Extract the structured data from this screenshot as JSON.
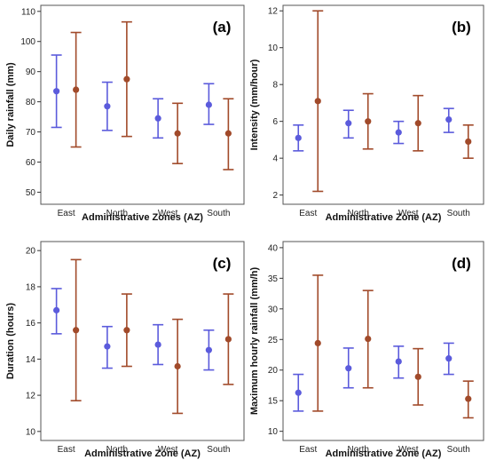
{
  "colors": {
    "series_1": "#5b5bdc",
    "series_2": "#a14a2a",
    "frame": "#555555",
    "background": "#ffffff"
  },
  "chart_data": [
    {
      "type": "errorbar",
      "panel_label": "(a)",
      "xlabel": "Administrative Zones (AZ)",
      "ylabel": "Daily rainfall (mm)",
      "categories": [
        "East",
        "North",
        "West",
        "South"
      ],
      "ylim": [
        46,
        112
      ],
      "yticks": [
        "50",
        "60",
        "70",
        "80",
        "90",
        "100",
        "110"
      ],
      "grid": false,
      "series": [
        {
          "mean": [
            83.5,
            78.5,
            74.5,
            79.0
          ],
          "lower": [
            71.5,
            70.5,
            68.0,
            72.5
          ],
          "upper": [
            95.5,
            86.5,
            81.0,
            86.0
          ]
        },
        {
          "mean": [
            84.0,
            87.5,
            69.5,
            69.5
          ],
          "lower": [
            65.0,
            68.5,
            59.5,
            57.5
          ],
          "upper": [
            103.0,
            106.5,
            79.5,
            81.0
          ]
        }
      ]
    },
    {
      "type": "errorbar",
      "panel_label": "(b)",
      "xlabel": "Administrative Zone (AZ)",
      "ylabel": "Intensity (mm/hour)",
      "categories": [
        "East",
        "North",
        "West",
        "South"
      ],
      "ylim": [
        1.5,
        12.3
      ],
      "yticks": [
        "2",
        "4",
        "6",
        "8",
        "10",
        "12"
      ],
      "grid": false,
      "series": [
        {
          "mean": [
            5.1,
            5.9,
            5.4,
            6.1
          ],
          "lower": [
            4.4,
            5.1,
            4.8,
            5.4
          ],
          "upper": [
            5.8,
            6.6,
            6.0,
            6.7
          ]
        },
        {
          "mean": [
            7.1,
            6.0,
            5.9,
            4.9
          ],
          "lower": [
            2.2,
            4.5,
            4.4,
            4.0
          ],
          "upper": [
            12.0,
            7.5,
            7.4,
            5.8
          ]
        }
      ]
    },
    {
      "type": "errorbar",
      "panel_label": "(c)",
      "xlabel": "Administrative Zone (AZ)",
      "ylabel": "Duration (hours)",
      "categories": [
        "East",
        "North",
        "West",
        "South"
      ],
      "ylim": [
        9.5,
        20.5
      ],
      "yticks": [
        "10",
        "12",
        "14",
        "16",
        "18",
        "20"
      ],
      "grid": false,
      "series": [
        {
          "mean": [
            16.7,
            14.7,
            14.8,
            14.5
          ],
          "lower": [
            15.4,
            13.5,
            13.7,
            13.4
          ],
          "upper": [
            17.9,
            15.8,
            15.9,
            15.6
          ]
        },
        {
          "mean": [
            15.6,
            15.6,
            13.6,
            15.1
          ],
          "lower": [
            11.7,
            13.6,
            11.0,
            12.6
          ],
          "upper": [
            19.5,
            17.6,
            16.2,
            17.6
          ]
        }
      ]
    },
    {
      "type": "errorbar",
      "panel_label": "(d)",
      "xlabel": "Administrative Zone (AZ)",
      "ylabel": "Maximum hourly rainfall (mm/h)",
      "categories": [
        "East",
        "North",
        "West",
        "South"
      ],
      "ylim": [
        8.5,
        41
      ],
      "yticks": [
        "10",
        "15",
        "20",
        "25",
        "30",
        "35",
        "40"
      ],
      "grid": false,
      "series": [
        {
          "mean": [
            16.3,
            20.3,
            21.4,
            21.9
          ],
          "lower": [
            13.3,
            17.1,
            18.7,
            19.3
          ],
          "upper": [
            19.3,
            23.6,
            23.9,
            24.4
          ]
        },
        {
          "mean": [
            24.4,
            25.1,
            18.9,
            15.3
          ],
          "lower": [
            13.3,
            17.1,
            14.3,
            12.2
          ],
          "upper": [
            35.5,
            33.0,
            23.5,
            18.2
          ]
        }
      ]
    }
  ]
}
